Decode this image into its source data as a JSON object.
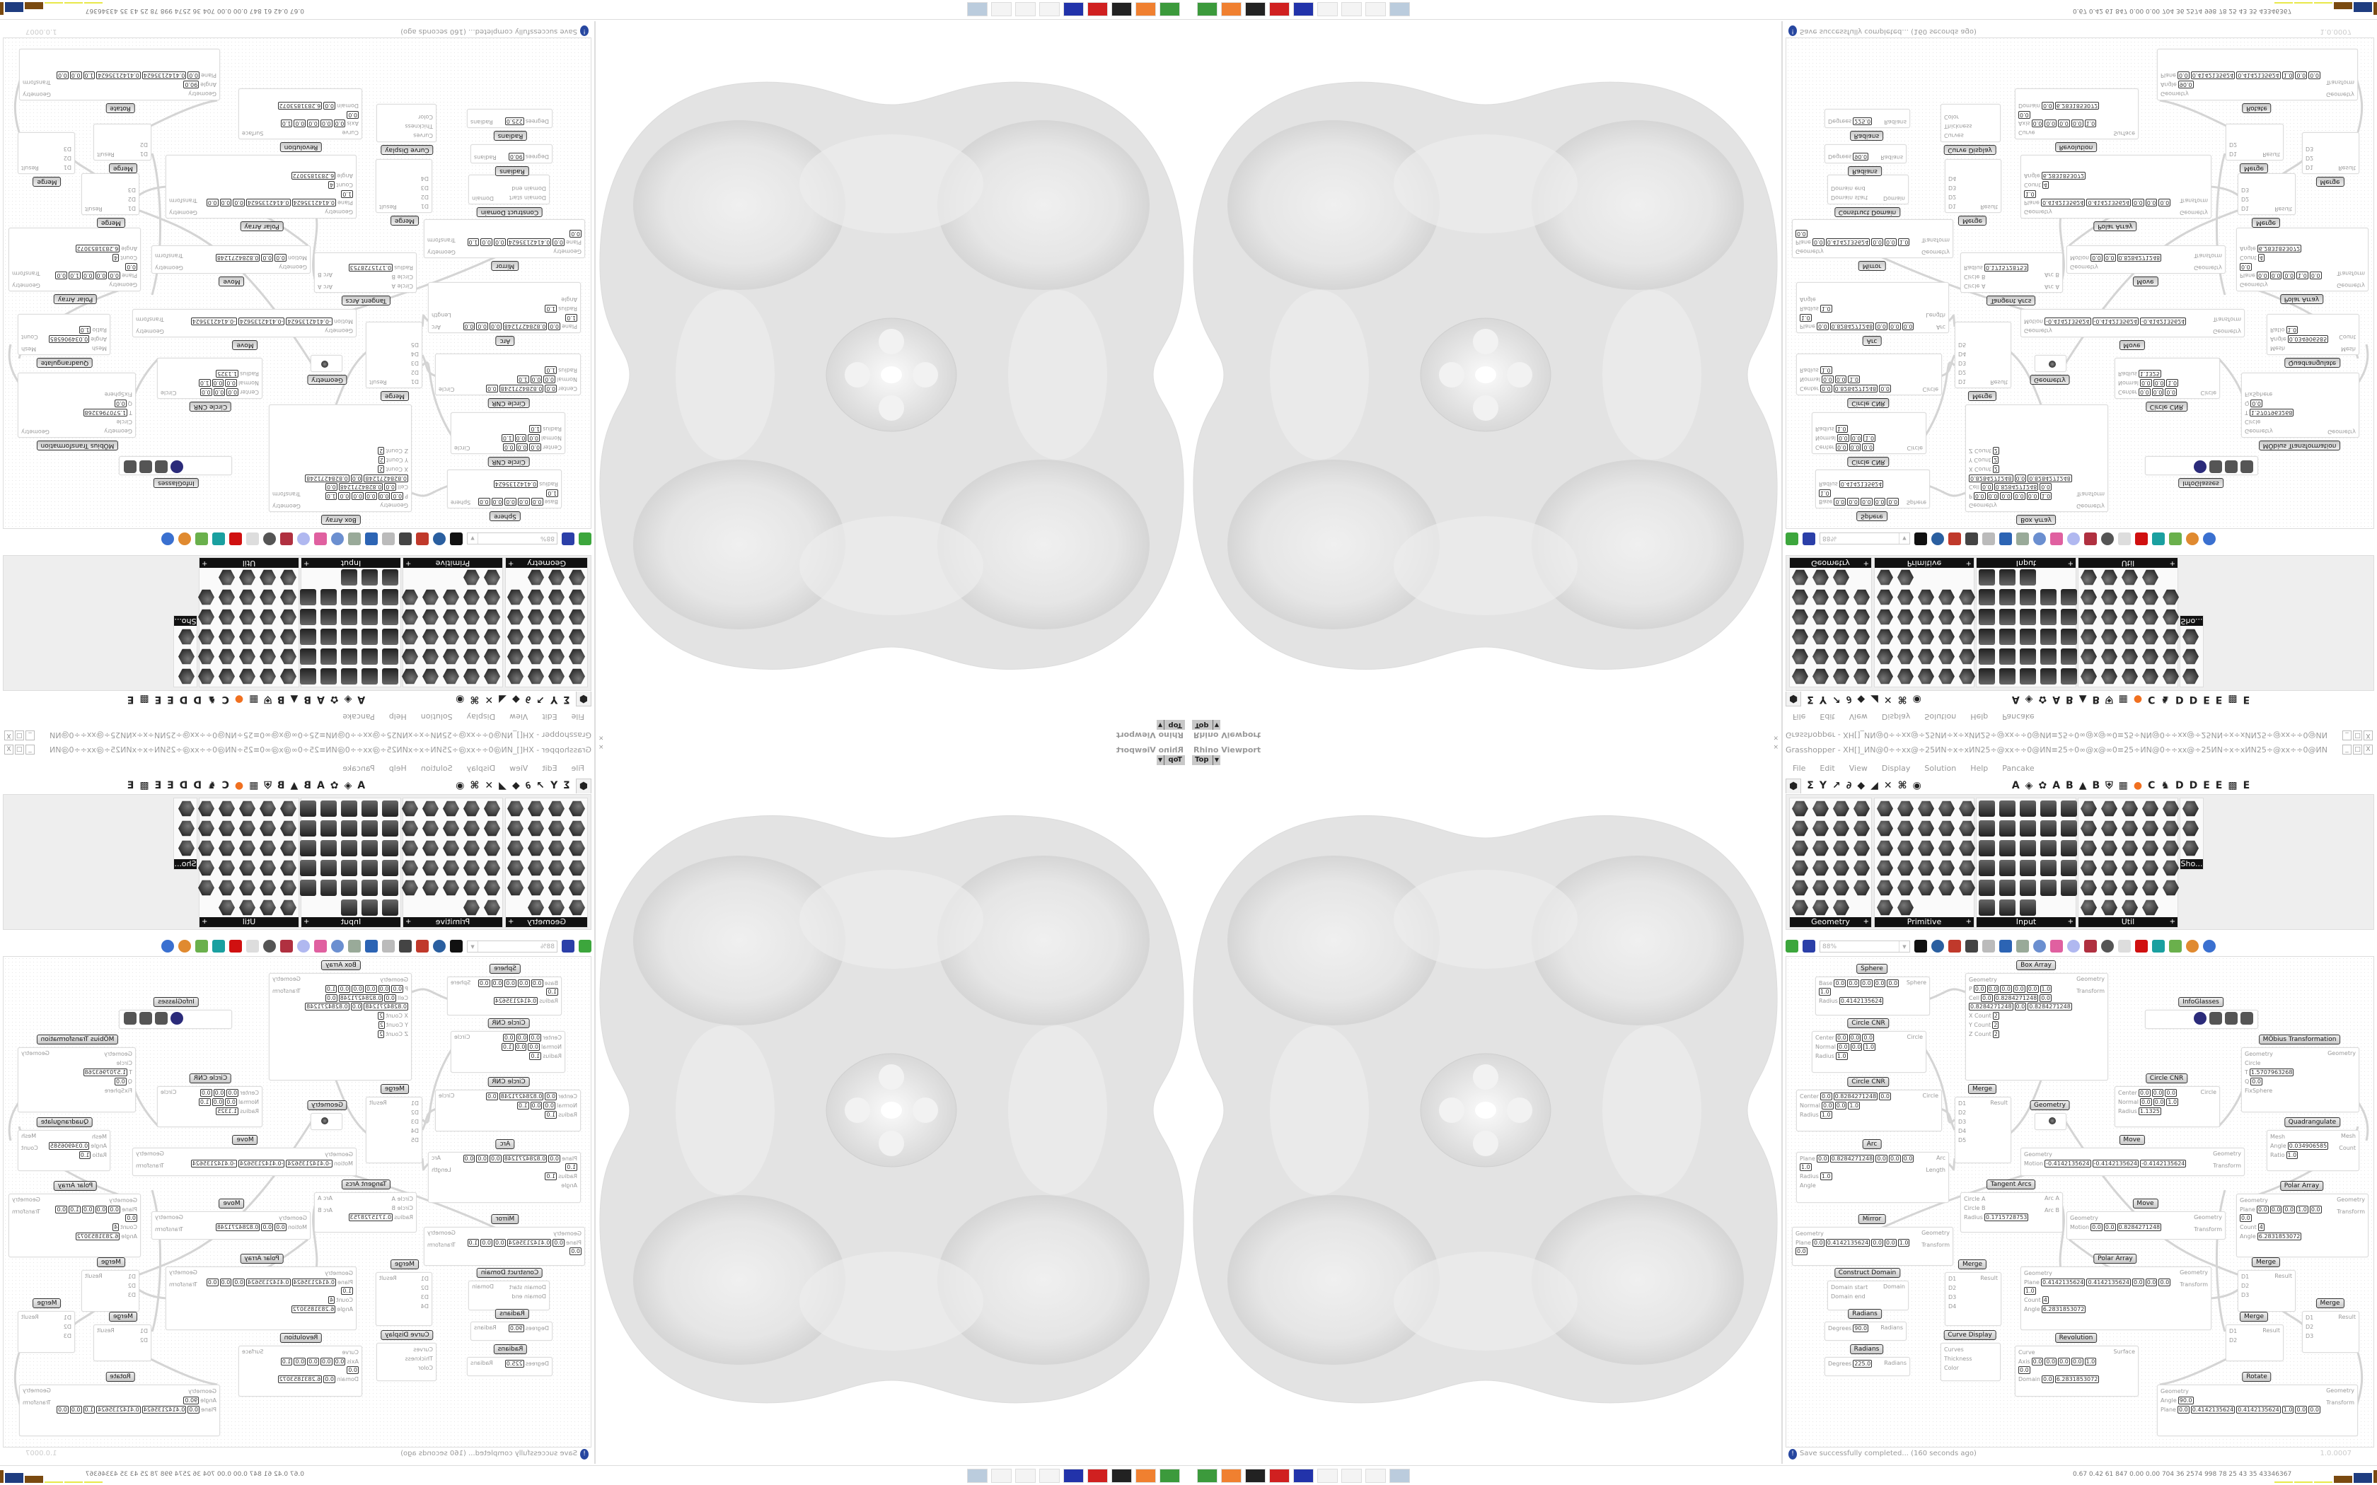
{
  "viewport": {
    "title": "Rhino Viewport",
    "view": "Top",
    "close": "×"
  },
  "grasshopper": {
    "title": "Grasshopper - XH[]_ИN@0÷÷xx@÷25ИN÷x÷xИN25÷@xx÷÷0@ИN≡25÷0∞@x@∞0≡25÷ИN@0÷÷xx@÷25ИN÷x÷xИN25÷@xx÷÷0@ИN",
    "window_buttons": [
      "_",
      "□",
      "X"
    ],
    "menu": [
      "File",
      "Edit",
      "View",
      "Display",
      "Solution",
      "Help",
      "Pancake"
    ],
    "tabs": [
      "⬢",
      "Σ",
      "Y",
      "↗",
      "∂",
      "◆",
      "◢",
      "✕",
      "⌘",
      "◉",
      "A",
      "◈",
      "✿",
      "A",
      "B",
      "▲",
      "B",
      "⛨",
      "▦",
      "●",
      "C",
      "♞",
      "D",
      "D",
      "E",
      "E",
      "▩",
      "E"
    ],
    "panels": [
      {
        "label": "Geometry",
        "cols": 4,
        "count": 23
      },
      {
        "label": "Primitive",
        "cols": 5,
        "count": 27
      },
      {
        "label": "Input",
        "cols": 5,
        "count": 28
      },
      {
        "label": "Util",
        "cols": 5,
        "count": 29
      },
      {
        "label": "Sho...",
        "cols": 1,
        "count": 3
      }
    ],
    "toolbar": {
      "zoom": "88%"
    },
    "status": {
      "message": "Save successfully completed... (160 seconds ago)",
      "version": "1.0.0007"
    }
  },
  "canvas": {
    "nodes": [
      {
        "title": "Sphere",
        "inputs": [
          {
            "label": "Base",
            "values": [
              "0.0",
              "0.0",
              "0.0",
              "0.0",
              "0.0",
              "1.0"
            ]
          },
          {
            "label": "Radius",
            "values": [
              "0.4142135624"
            ]
          }
        ],
        "outputs": [
          "Sphere"
        ]
      },
      {
        "title": "Circle CNR",
        "inputs": [
          {
            "label": "Center",
            "values": [
              "0.0",
              "0.0",
              "0.0"
            ]
          },
          {
            "label": "Normal",
            "values": [
              "0.0",
              "0.0",
              "1.0"
            ]
          },
          {
            "label": "Radius",
            "values": [
              "1.0"
            ]
          }
        ],
        "outputs": [
          "Circle"
        ]
      },
      {
        "title": "Circle CNR",
        "inputs": [
          {
            "label": "Center",
            "values": [
              "0.0",
              "0.8284271248",
              "0.0"
            ]
          },
          {
            "label": "Normal",
            "values": [
              "0.0",
              "0.0",
              "1.0"
            ]
          },
          {
            "label": "Radius",
            "values": [
              "1.0"
            ]
          }
        ],
        "outputs": [
          "Circle"
        ]
      },
      {
        "title": "Arc",
        "inputs": [
          {
            "label": "Plane",
            "values": [
              "0.0",
              "0.8284271248",
              "0.0",
              "0.0",
              "0.0",
              "1.0"
            ]
          },
          {
            "label": "Radius",
            "values": [
              "1.0"
            ]
          },
          {
            "label": "Angle",
            "values": []
          }
        ],
        "outputs": [
          "Arc",
          "Length"
        ]
      },
      {
        "title": "Mirror",
        "inputs": [
          {
            "label": "Geometry",
            "values": []
          },
          {
            "label": "Plane",
            "values": [
              "0.0",
              "0.4142135624",
              "0.0",
              "0.0",
              "1.0",
              "0.0"
            ]
          }
        ],
        "outputs": [
          "Geometry",
          "Transform"
        ]
      },
      {
        "title": "Construct Domain",
        "inputs": [
          {
            "label": "Domain start",
            "values": []
          },
          {
            "label": "Domain end",
            "values": []
          }
        ],
        "outputs": [
          "Domain"
        ]
      },
      {
        "title": "Radians",
        "inputs": [
          {
            "label": "Degrees",
            "values": [
              "90.0"
            ]
          }
        ],
        "outputs": [
          "Radians"
        ]
      },
      {
        "title": "Radians",
        "inputs": [
          {
            "label": "Degrees",
            "values": [
              "225.0"
            ]
          }
        ],
        "outputs": [
          "Radians"
        ]
      },
      {
        "title": "Curve Display",
        "inputs": [
          {
            "label": "Curves",
            "values": []
          },
          {
            "label": "Thickness",
            "values": []
          },
          {
            "label": "Color",
            "values": []
          }
        ],
        "outputs": []
      },
      {
        "title": "Box Array",
        "inputs": [
          {
            "label": "Geometry",
            "values": []
          },
          {
            "label": "P",
            "values": [
              "0.0",
              "0.0",
              "0.0",
              "0.0",
              "0.0",
              "1.0"
            ]
          },
          {
            "label": "Cell",
            "values": [
              "0.0",
              "0.8284271248",
              "0.0",
              "0.8284271248",
              "0.0",
              "0.8284271248"
            ]
          },
          {
            "label": "X Count",
            "values": [
              "2"
            ]
          },
          {
            "label": "Y Count",
            "values": [
              "2"
            ]
          },
          {
            "label": "Z Count",
            "values": [
              "2"
            ]
          }
        ],
        "outputs": [
          "Geometry",
          "Transform"
        ]
      },
      {
        "title": "Merge",
        "inputs": [
          {
            "label": "D1",
            "values": []
          },
          {
            "label": "D2",
            "values": []
          },
          {
            "label": "D3",
            "values": []
          },
          {
            "label": "D4",
            "values": []
          },
          {
            "label": "D5",
            "values": []
          }
        ],
        "outputs": [
          "Result"
        ]
      },
      {
        "title": "Geometry",
        "inputs": [],
        "outputs": []
      },
      {
        "title": "Move",
        "inputs": [
          {
            "label": "Geometry",
            "values": []
          },
          {
            "label": "Motion",
            "values": [
              "-0.4142135624",
              "-0.4142135624",
              "-0.4142135624"
            ]
          }
        ],
        "outputs": [
          "Geometry",
          "Transform"
        ]
      },
      {
        "title": "Tangent Arcs",
        "inputs": [
          {
            "label": "Circle A",
            "values": []
          },
          {
            "label": "Circle B",
            "values": []
          },
          {
            "label": "Radius",
            "values": [
              "0.1715728753"
            ]
          }
        ],
        "outputs": [
          "Arc A",
          "Arc B"
        ]
      },
      {
        "title": "Move",
        "inputs": [
          {
            "label": "Geometry",
            "values": []
          },
          {
            "label": "Motion",
            "values": [
              "0.0",
              "0.0",
              "0.8284271248"
            ]
          }
        ],
        "outputs": [
          "Geometry",
          "Transform"
        ]
      },
      {
        "title": "Merge",
        "inputs": [
          {
            "label": "D1",
            "values": []
          },
          {
            "label": "D2",
            "values": []
          },
          {
            "label": "D3",
            "values": []
          },
          {
            "label": "D4",
            "values": []
          }
        ],
        "outputs": [
          "Result"
        ]
      },
      {
        "title": "Polar Array",
        "inputs": [
          {
            "label": "Geometry",
            "values": []
          },
          {
            "label": "Plane",
            "values": [
              "0.4142135624",
              "0.4142135624",
              "0.0",
              "0.0",
              "0.0",
              "1.0"
            ]
          },
          {
            "label": "Count",
            "values": [
              "4"
            ]
          },
          {
            "label": "Angle",
            "values": [
              "6.2831853072"
            ]
          }
        ],
        "outputs": [
          "Geometry",
          "Transform"
        ]
      },
      {
        "title": "Revolution",
        "inputs": [
          {
            "label": "Curve",
            "values": []
          },
          {
            "label": "Axis",
            "values": [
              "0.0",
              "0.0",
              "0.0",
              "0.0",
              "1.0",
              "0.0"
            ]
          },
          {
            "label": "Domain",
            "values": [
              "0.0",
              "6.2831853072"
            ]
          }
        ],
        "outputs": [
          "Surface"
        ]
      },
      {
        "title": "InfoGlasses",
        "inputs": [],
        "outputs": []
      },
      {
        "title": "MÖbius Transformation",
        "inputs": [
          {
            "label": "Geometry",
            "values": []
          },
          {
            "label": "Circle",
            "values": []
          },
          {
            "label": "T",
            "values": [
              "1.5707963268"
            ]
          },
          {
            "label": "Q",
            "values": [
              "0.0"
            ]
          },
          {
            "label": "FixSphere",
            "values": []
          }
        ],
        "outputs": [
          "Geometry"
        ]
      },
      {
        "title": "Circle CNR",
        "inputs": [
          {
            "label": "Center",
            "values": [
              "0.0",
              "0.0",
              "0.0"
            ]
          },
          {
            "label": "Normal",
            "values": [
              "0.0",
              "0.0",
              "1.0"
            ]
          },
          {
            "label": "Radius",
            "values": [
              "1.1325"
            ]
          }
        ],
        "outputs": [
          "Circle"
        ]
      },
      {
        "title": "Quadrangulate",
        "inputs": [
          {
            "label": "Mesh",
            "values": []
          },
          {
            "label": "Angle",
            "values": [
              "0.034906585"
            ]
          },
          {
            "label": "Ratio",
            "values": [
              "1.0"
            ]
          }
        ],
        "outputs": [
          "Mesh",
          "Count"
        ]
      },
      {
        "title": "Polar Array",
        "inputs": [
          {
            "label": "Geometry",
            "values": []
          },
          {
            "label": "Plane",
            "values": [
              "0.0",
              "0.0",
              "0.0",
              "1.0",
              "0.0",
              "0.0"
            ]
          },
          {
            "label": "Count",
            "values": [
              "4"
            ]
          },
          {
            "label": "Angle",
            "values": [
              "6.2831853072"
            ]
          }
        ],
        "outputs": [
          "Geometry",
          "Transform"
        ]
      },
      {
        "title": "Merge",
        "inputs": [
          {
            "label": "D1",
            "values": []
          },
          {
            "label": "D2",
            "values": []
          },
          {
            "label": "D3",
            "values": []
          }
        ],
        "outputs": [
          "Result"
        ]
      },
      {
        "title": "Merge",
        "inputs": [
          {
            "label": "D1",
            "values": []
          },
          {
            "label": "D2",
            "values": []
          }
        ],
        "outputs": [
          "Result"
        ]
      },
      {
        "title": "Merge",
        "inputs": [
          {
            "label": "D1",
            "values": []
          },
          {
            "label": "D2",
            "values": []
          },
          {
            "label": "D3",
            "values": []
          }
        ],
        "outputs": [
          "Result"
        ]
      },
      {
        "title": "Rotate",
        "inputs": [
          {
            "label": "Geometry",
            "values": []
          },
          {
            "label": "Angle",
            "values": [
              "90.0"
            ]
          },
          {
            "label": "Plane",
            "values": [
              "0.0",
              "0.4142135624",
              "0.4142135624",
              "1.0",
              "0.0",
              "0.0"
            ]
          }
        ],
        "outputs": [
          "Geometry",
          "Transform"
        ]
      }
    ]
  },
  "taskbar": {
    "perf": "0.67 0.42 61 847 0.00 0.00 704 36 2574 998 78 25 43 35 43346367",
    "perf_bar_colors": [
      "#e8e84a",
      "#e8e84a",
      "#e8e84a",
      "#7a4a10",
      "#1f3d80",
      "#7a4a10",
      "#44cc44",
      "#7a1010"
    ]
  },
  "colors": {
    "accent": "#2747a0",
    "panel_header": "#111111"
  }
}
